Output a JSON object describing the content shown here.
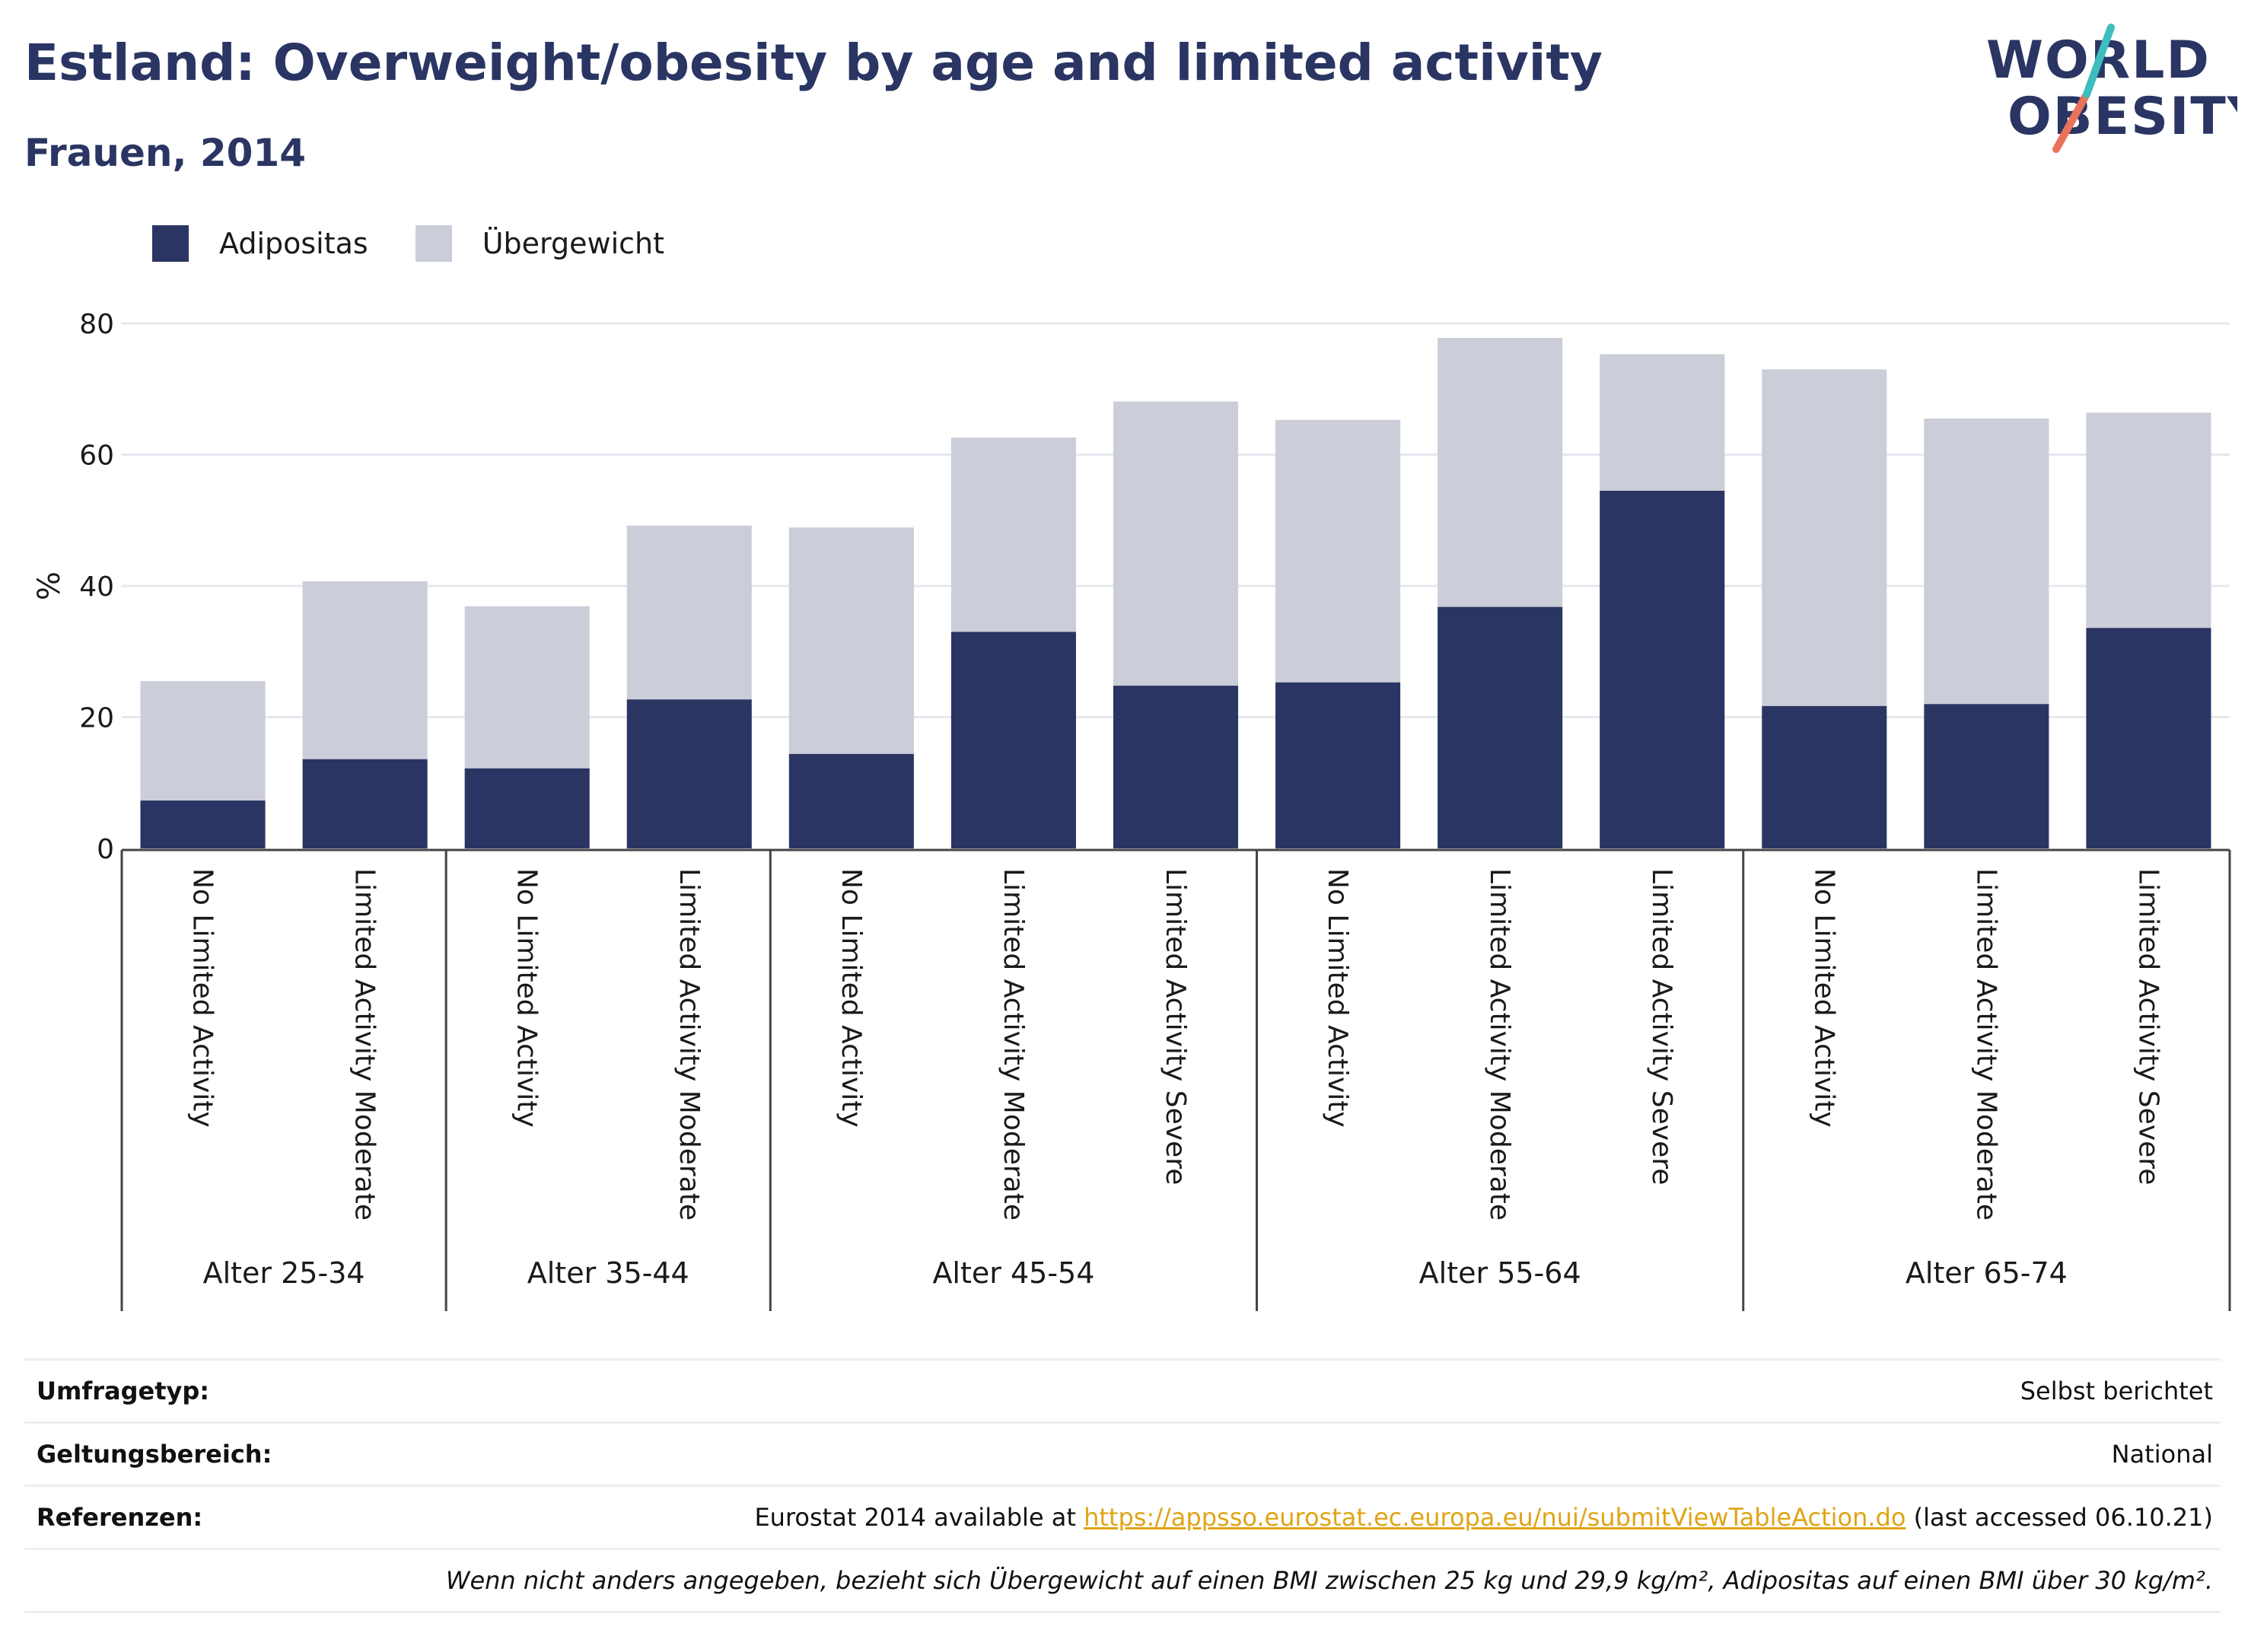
{
  "title": "Estland: Overweight/obesity by age and limited activity",
  "subtitle": "Frauen, 2014",
  "logo": {
    "line1": "WORLD",
    "line2": "OBESITY"
  },
  "colors": {
    "obesity": "#2a3563",
    "overweight": "#cbcdd9",
    "title": "#2a3563",
    "link": "#e0a416"
  },
  "legend": [
    {
      "label": "Adipositas",
      "color": "#2a3563"
    },
    {
      "label": "Übergewicht",
      "color": "#cbcdd9"
    }
  ],
  "chart_data": {
    "type": "bar",
    "stacked": true,
    "ylabel": "%",
    "ylim": [
      0,
      80
    ],
    "yticks": [
      0,
      20,
      40,
      60,
      80
    ],
    "grid": true,
    "legend_position": "top-left",
    "groups": [
      {
        "label": "Alter 25-34",
        "categories": [
          "No Limited Activity",
          "Limited Activity Moderate"
        ]
      },
      {
        "label": "Alter 35-44",
        "categories": [
          "No Limited Activity",
          "Limited Activity Moderate"
        ]
      },
      {
        "label": "Alter 45-54",
        "categories": [
          "No Limited Activity",
          "Limited Activity Moderate",
          "Limited Activity Severe"
        ]
      },
      {
        "label": "Alter 55-64",
        "categories": [
          "No Limited Activity",
          "Limited Activity Moderate",
          "Limited Activity Severe"
        ]
      },
      {
        "label": "Alter 65-74",
        "categories": [
          "No Limited Activity",
          "Limited Activity Moderate",
          "Limited Activity Severe"
        ]
      }
    ],
    "series": [
      {
        "name": "Adipositas",
        "values": [
          7.3,
          13.6,
          12.2,
          22.7,
          14.4,
          33.0,
          24.8,
          25.3,
          36.8,
          54.5,
          21.7,
          22.0,
          33.6
        ]
      },
      {
        "name": "Übergewicht",
        "values": [
          18.2,
          27.1,
          24.7,
          26.5,
          34.5,
          29.6,
          43.3,
          40.0,
          41.0,
          20.8,
          51.3,
          43.5,
          32.8
        ]
      }
    ],
    "totals": [
      25.5,
      40.7,
      36.9,
      49.2,
      48.9,
      62.6,
      68.1,
      65.3,
      77.8,
      75.3,
      73.0,
      65.5,
      66.4
    ]
  },
  "info": {
    "survey_type_label": "Umfragetyp:",
    "survey_type_value": "Selbst berichtet",
    "scope_label": "Geltungsbereich:",
    "scope_value": "National",
    "references_label": "Referenzen:",
    "references_prefix": "Eurostat 2014 available at ",
    "references_link": "https://appsso.eurostat.ec.europa.eu/nui/submitViewTableAction.do",
    "references_suffix": " (last accessed 06.10.21)",
    "note": "Wenn nicht anders angegeben, bezieht sich Übergewicht auf einen BMI zwischen 25 kg und 29,9 kg/m², Adipositas auf einen BMI über 30 kg/m²."
  }
}
